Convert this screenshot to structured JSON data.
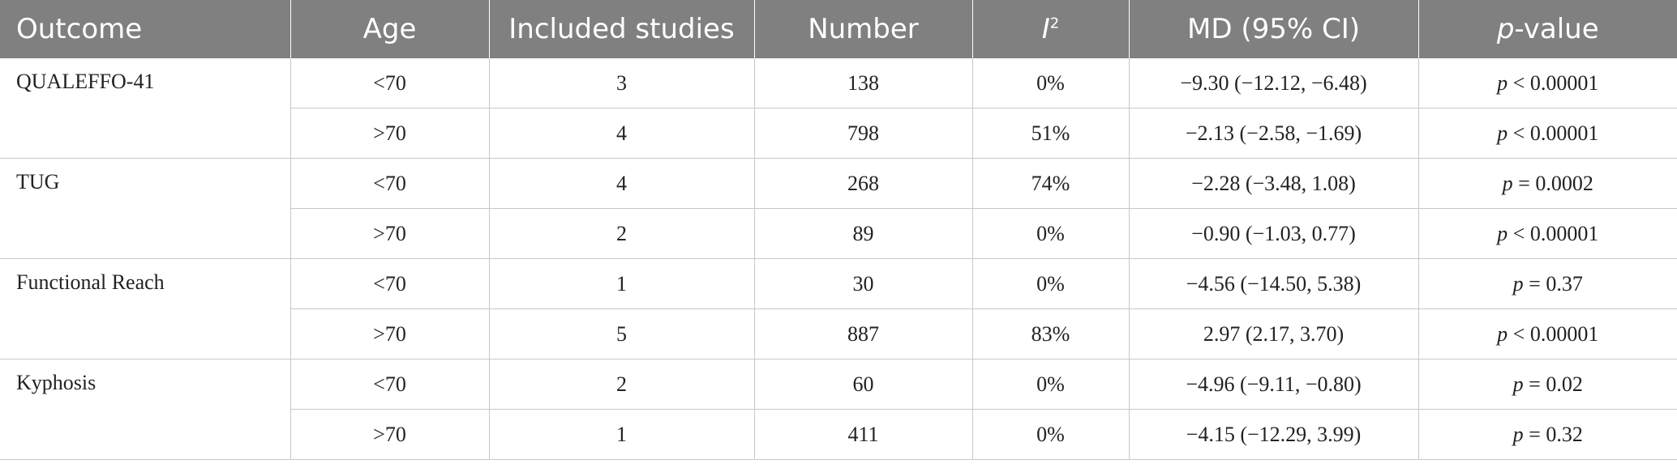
{
  "headers": {
    "outcome": "Outcome",
    "age": "Age",
    "included_studies": "Included studies",
    "number": "Number",
    "i2_letter": "I",
    "i2_sup": "2",
    "md": "MD (95% CI)",
    "pvalue_p": "p",
    "pvalue_rest": "-value"
  },
  "groups": [
    {
      "outcome": "QUALEFFO-41",
      "rows": [
        {
          "age": "<70",
          "studies": "3",
          "number": "138",
          "i2": "0%",
          "md": "−9.30 (−12.12, −6.48)",
          "p_op": " < ",
          "p_val": "0.00001"
        },
        {
          "age": ">70",
          "studies": "4",
          "number": "798",
          "i2": "51%",
          "md": "−2.13 (−2.58, −1.69)",
          "p_op": " < ",
          "p_val": "0.00001"
        }
      ]
    },
    {
      "outcome": "TUG",
      "rows": [
        {
          "age": "<70",
          "studies": "4",
          "number": "268",
          "i2": "74%",
          "md": "−2.28 (−3.48, 1.08)",
          "p_op": " = ",
          "p_val": "0.0002"
        },
        {
          "age": ">70",
          "studies": "2",
          "number": "89",
          "i2": "0%",
          "md": "−0.90 (−1.03, 0.77)",
          "p_op": " < ",
          "p_val": "0.00001"
        }
      ]
    },
    {
      "outcome": "Functional Reach",
      "rows": [
        {
          "age": "<70",
          "studies": "1",
          "number": "30",
          "i2": "0%",
          "md": "−4.56 (−14.50, 5.38)",
          "p_op": " = ",
          "p_val": "0.37"
        },
        {
          "age": ">70",
          "studies": "5",
          "number": "887",
          "i2": "83%",
          "md": "2.97 (2.17, 3.70)",
          "p_op": " < ",
          "p_val": "0.00001"
        }
      ]
    },
    {
      "outcome": "Kyphosis",
      "rows": [
        {
          "age": "<70",
          "studies": "2",
          "number": "60",
          "i2": "0%",
          "md": "−4.96 (−9.11, −0.80)",
          "p_op": " = ",
          "p_val": "0.02"
        },
        {
          "age": ">70",
          "studies": "1",
          "number": "411",
          "i2": "0%",
          "md": "−4.15 (−12.29, 3.99)",
          "p_op": " = ",
          "p_val": "0.32"
        }
      ]
    }
  ],
  "colors": {
    "header_bg": "#808080",
    "header_text": "#ffffff",
    "grid_line": "#c8c8c8"
  }
}
